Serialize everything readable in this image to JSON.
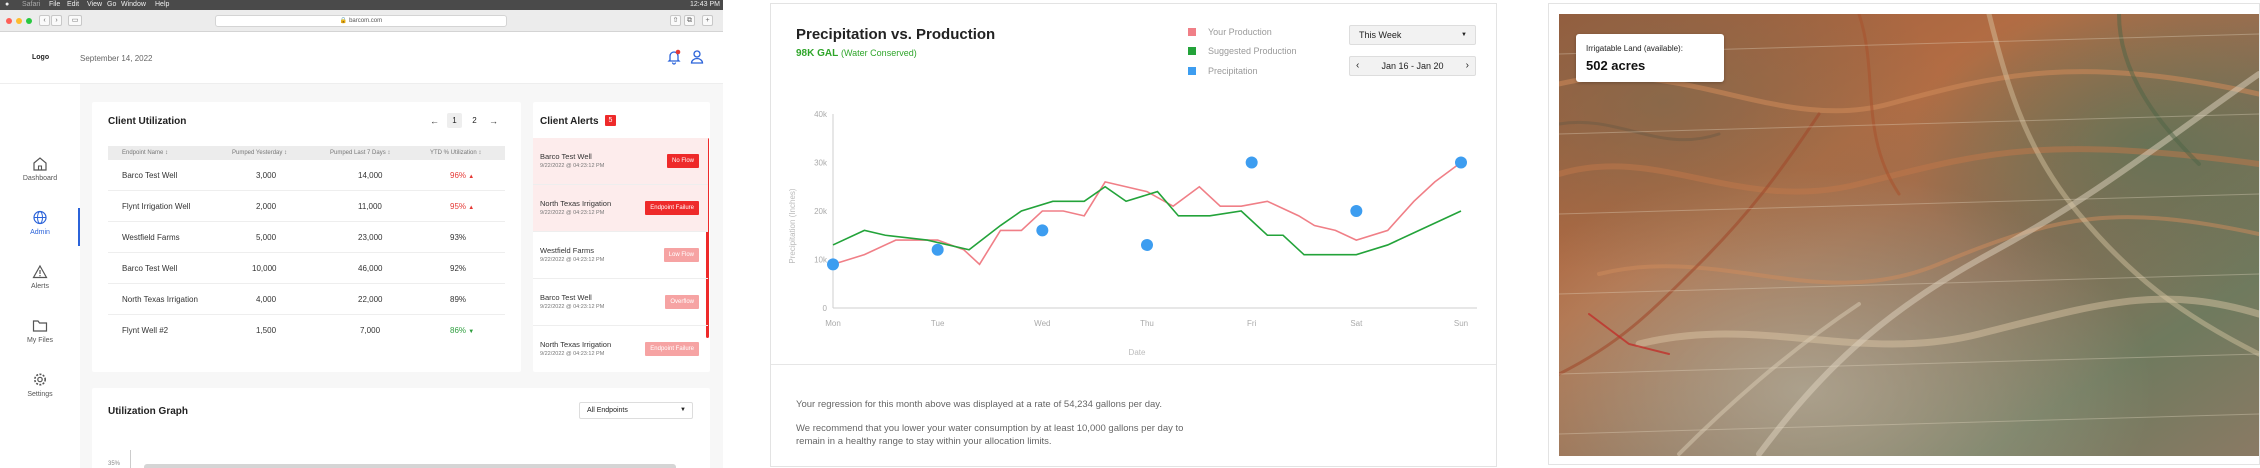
{
  "browser": {
    "app_name": "Safari",
    "menu": [
      "File",
      "Edit",
      "View",
      "Go",
      "Window",
      "Help"
    ],
    "clock": "12:43 PM",
    "url": "barcom.com"
  },
  "app": {
    "logo": "Logo",
    "date": "September 14, 2022"
  },
  "sidebar": {
    "items": [
      {
        "label": "Dashboard",
        "icon": "home-icon"
      },
      {
        "label": "Admin",
        "icon": "globe-icon"
      },
      {
        "label": "Alerts",
        "icon": "alert-triangle-icon"
      },
      {
        "label": "My Files",
        "icon": "folder-icon"
      },
      {
        "label": "Settings",
        "icon": "gear-icon"
      }
    ],
    "active": "Admin"
  },
  "utilization": {
    "title": "Client Utilization",
    "pages": [
      "1",
      "2"
    ],
    "prev": "←",
    "next": "→",
    "columns": [
      "Endpoint Name ↕",
      "Pumped Yesterday ↕",
      "Pumped Last 7 Days ↕",
      "YTD % Utilization ↕"
    ],
    "rows": [
      {
        "name": "Barco Test Well",
        "yesterday": "3,000",
        "week": "14,000",
        "ytd": "96%",
        "trend": "▲",
        "color": "#e53935"
      },
      {
        "name": "Flynt Irrigation Well",
        "yesterday": "2,000",
        "week": "11,000",
        "ytd": "95%",
        "trend": "▲",
        "color": "#e53935"
      },
      {
        "name": "Westfield Farms",
        "yesterday": "5,000",
        "week": "23,000",
        "ytd": "93%",
        "trend": "",
        "color": "#333333"
      },
      {
        "name": "Barco Test Well",
        "yesterday": "10,000",
        "week": "46,000",
        "ytd": "92%",
        "trend": "",
        "color": "#333333"
      },
      {
        "name": "North Texas Irrigation",
        "yesterday": "4,000",
        "week": "22,000",
        "ytd": "89%",
        "trend": "",
        "color": "#333333"
      },
      {
        "name": "Flynt Well #2",
        "yesterday": "1,500",
        "week": "7,000",
        "ytd": "86%",
        "trend": "▼",
        "color": "#2e9e3e"
      }
    ]
  },
  "alerts": {
    "title": "Client Alerts",
    "count": "5",
    "items": [
      {
        "name": "Barco Test Well",
        "time": "9/22/2022 @ 04:23:12 PM",
        "badge": "No Flow",
        "badge_color": "#ee2a2a",
        "highlight": true
      },
      {
        "name": "North Texas Irrigation",
        "time": "9/22/2022 @ 04:23:12 PM",
        "badge": "Endpoint Failure",
        "badge_color": "#ee2a2a",
        "highlight": true
      },
      {
        "name": "Westfield Farms",
        "time": "9/22/2022 @ 04:23:12 PM",
        "badge": "Low Flow",
        "badge_color": "#f6a3a3",
        "highlight": false
      },
      {
        "name": "Barco Test Well",
        "time": "9/22/2022 @ 04:23:12 PM",
        "badge": "Overflow",
        "badge_color": "#f6a3a3",
        "highlight": false
      },
      {
        "name": "North Texas Irrigation",
        "time": "9/22/2022 @ 04:23:12 PM",
        "badge": "Endpoint Failure",
        "badge_color": "#f6a3a3",
        "highlight": false
      }
    ]
  },
  "graph": {
    "title": "Utilization Graph",
    "select": "All Endpoints",
    "ytick": "35%"
  },
  "precip": {
    "title": "Precipitation vs. Production",
    "saved_value": "98K GAL",
    "saved_label": "(Water Conserved)",
    "range_select": "This Week",
    "date_range": "Jan 16 - Jan 20",
    "legend": [
      "Your Production",
      "Suggested Production",
      "Precipitation"
    ],
    "text1": "Your regression for this month above was displayed at a rate of 54,234 gallons per day.",
    "text2": "We recommend that you lower your water consumption by at least 10,000 gallons per day to remain in a healthy range to stay within your allocation limits."
  },
  "chart_data": {
    "type": "line",
    "xlabel": "Date",
    "ylabel": "Precipitation (Inches)",
    "ylim": [
      0,
      40000
    ],
    "yticks": [
      "0",
      "10k",
      "20k",
      "30k",
      "40k"
    ],
    "categories": [
      "Mon",
      "Tue",
      "Wed",
      "Thu",
      "Fri",
      "Sat",
      "Sun"
    ],
    "series": [
      {
        "name": "Your Production",
        "kind": "line",
        "color": "#f07f87",
        "x": [
          0,
          0.3,
          0.6,
          1,
          1.25,
          1.4,
          1.6,
          1.8,
          2,
          2.2,
          2.4,
          2.6,
          2.8,
          3,
          3.25,
          3.5,
          3.7,
          3.9,
          4.15,
          4.45,
          4.6,
          4.8,
          5,
          5.3,
          5.55,
          5.75,
          6
        ],
        "values": [
          9000,
          11000,
          14000,
          14000,
          12000,
          9000,
          16000,
          16000,
          20000,
          20000,
          19000,
          26000,
          25000,
          24000,
          21000,
          25000,
          21000,
          21000,
          22000,
          19000,
          17000,
          16000,
          14000,
          16000,
          22000,
          26000,
          30000
        ]
      },
      {
        "name": "Suggested Production",
        "kind": "line",
        "color": "#23a33a",
        "x": [
          0,
          0.3,
          0.5,
          0.9,
          1.3,
          1.6,
          1.8,
          2.1,
          2.4,
          2.6,
          2.8,
          3.1,
          3.3,
          3.6,
          3.9,
          4.15,
          4.3,
          4.5,
          4.65,
          5,
          5.3,
          5.6,
          6
        ],
        "values": [
          13000,
          16000,
          15000,
          14000,
          12000,
          17000,
          20000,
          22000,
          22000,
          25000,
          22000,
          24000,
          19000,
          19000,
          20000,
          15000,
          15000,
          11000,
          11000,
          11000,
          13000,
          16000,
          20000
        ]
      },
      {
        "name": "Precipitation",
        "kind": "scatter",
        "color": "#3d9df0",
        "x": [
          0,
          1,
          2,
          3,
          4,
          5,
          6
        ],
        "values": [
          9000,
          12000,
          16000,
          13000,
          30000,
          20000,
          30000
        ]
      }
    ]
  },
  "land": {
    "label": "Irrigatable Land (available):",
    "value": "502 acres"
  }
}
